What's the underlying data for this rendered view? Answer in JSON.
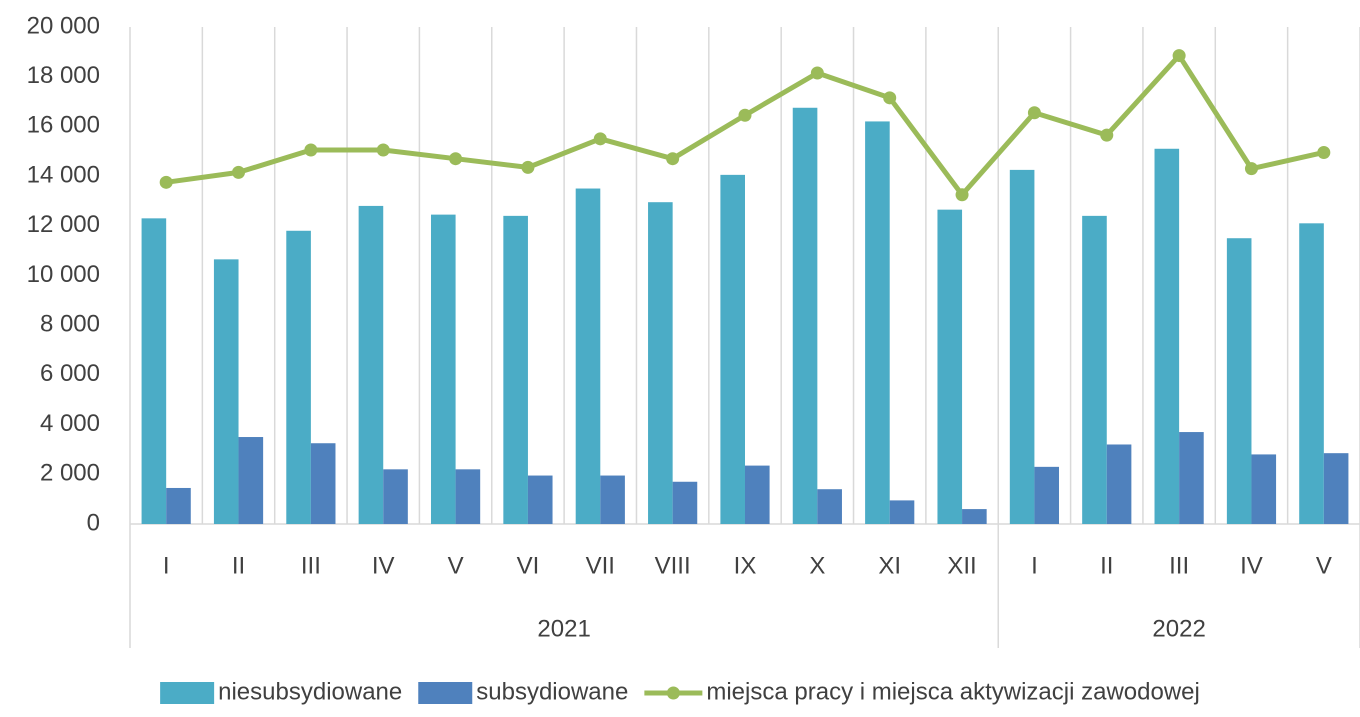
{
  "chart_data": {
    "type": "bar",
    "categories": [
      "I",
      "II",
      "III",
      "IV",
      "V",
      "VI",
      "VII",
      "VIII",
      "IX",
      "X",
      "XI",
      "XII",
      "I",
      "II",
      "III",
      "IV",
      "V"
    ],
    "category_groups": [
      {
        "label": "2021",
        "count": 12
      },
      {
        "label": "2022",
        "count": 5
      }
    ],
    "series": [
      {
        "name": "niesubsydiowane",
        "type": "bar",
        "color": "#4bacc6",
        "values": [
          12300,
          10650,
          11800,
          12800,
          12450,
          12400,
          13500,
          12950,
          14050,
          16750,
          16200,
          12650,
          14250,
          12400,
          15100,
          11500,
          12100
        ]
      },
      {
        "name": "subsydiowane",
        "type": "bar",
        "color": "#4f81bd",
        "values": [
          1450,
          3500,
          3250,
          2200,
          2200,
          1950,
          1950,
          1700,
          2350,
          1400,
          950,
          600,
          2300,
          3200,
          3700,
          2800,
          2850
        ]
      },
      {
        "name": "miejsca pracy i miejsca aktywizacji zawodowej",
        "type": "line",
        "color": "#9bbb59",
        "values": [
          13750,
          14150,
          15050,
          15050,
          14700,
          14350,
          15500,
          14700,
          16450,
          18150,
          17150,
          13250,
          16550,
          15650,
          18850,
          14300,
          14950
        ]
      }
    ],
    "ylim": [
      0,
      20000
    ],
    "yticks": [
      0,
      {
        "value": 2000,
        "label": "2 000"
      },
      {
        "value": 4000,
        "label": "4 000"
      },
      {
        "value": 6000,
        "label": "6 000"
      },
      {
        "value": 8000,
        "label": "8 000"
      },
      {
        "value": 10000,
        "label": "10 000"
      },
      {
        "value": 12000,
        "label": "12 000"
      },
      {
        "value": 14000,
        "label": "14 000"
      },
      {
        "value": 16000,
        "label": "16 000"
      },
      {
        "value": 18000,
        "label": "18 000"
      },
      {
        "value": 20000,
        "label": "20 000"
      }
    ],
    "grid": true,
    "legend": "bottom"
  }
}
